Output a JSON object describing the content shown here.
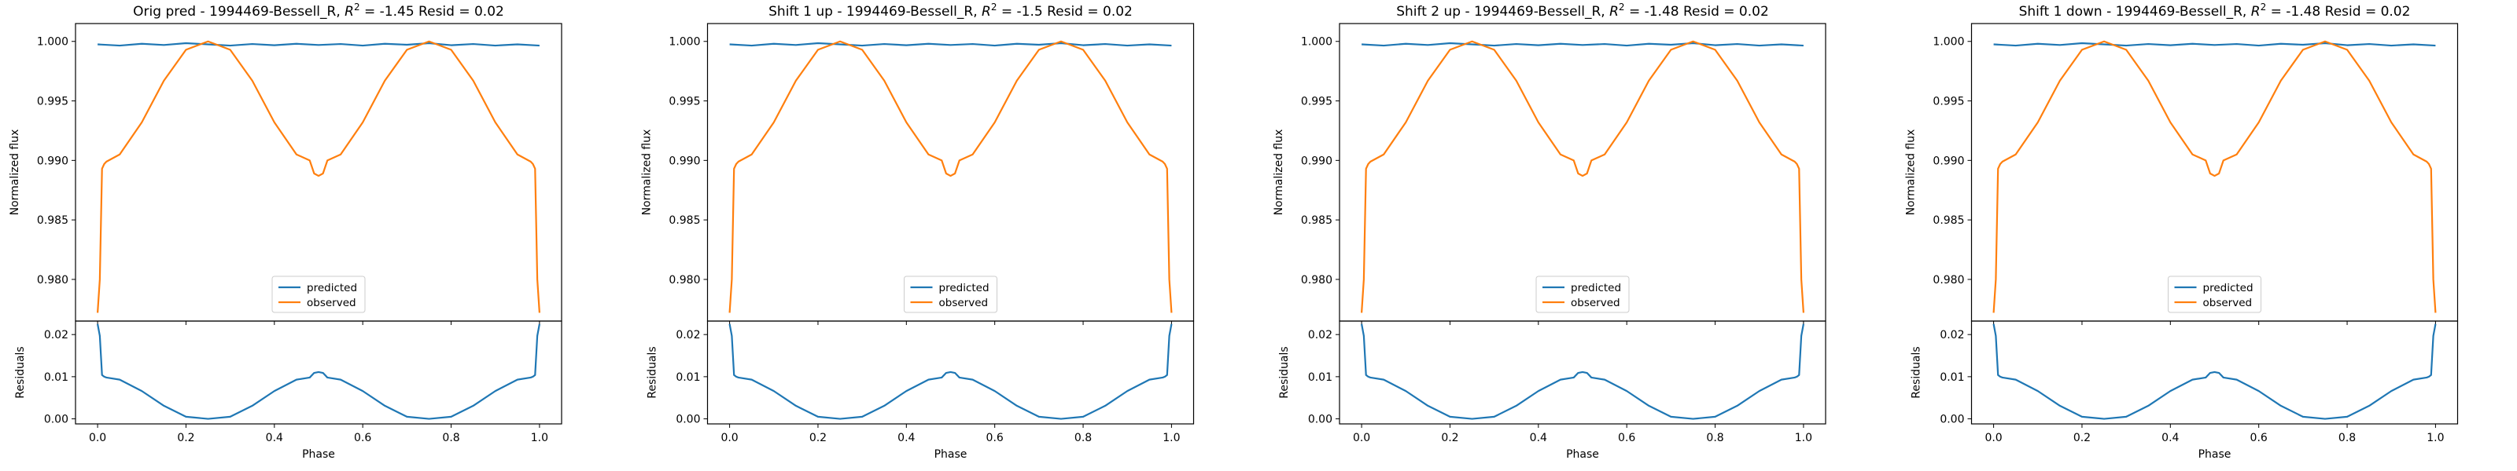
{
  "figure": {
    "panels": [
      {
        "title": "Orig pred - 1994469-Bessell_R, $R^2 = $-1.45 Resid = 0.02"
      },
      {
        "title": "Shift 1 up - 1994469-Bessell_R, $R^2 = $-1.5 Resid = 0.02"
      },
      {
        "title": "Shift 2 up - 1994469-Bessell_R, $R^2 = $-1.48 Resid = 0.02"
      },
      {
        "title": "Shift 1 down - 1994469-Bessell_R, $R^2 = $-1.48 Resid = 0.02"
      }
    ]
  },
  "colors": {
    "predicted": "#1f77b4",
    "observed": "#ff7f0e"
  },
  "chart_data": {
    "type": "line",
    "layout": "4 panels, each with a flux subplot above a residuals subplot",
    "main": {
      "ylabel": "Normalized flux",
      "ylim": [
        0.9765,
        1.0015
      ],
      "yticks": [
        0.98,
        0.985,
        0.99,
        0.995,
        1.0
      ],
      "ytick_labels": [
        "0.980",
        "0.985",
        "0.990",
        "0.995",
        "1.000"
      ],
      "legend": [
        "predicted",
        "observed"
      ],
      "legend_loc": "lower center",
      "series": [
        {
          "name": "predicted",
          "x": [
            0.0,
            0.05,
            0.1,
            0.15,
            0.2,
            0.25,
            0.3,
            0.35,
            0.4,
            0.45,
            0.5,
            0.55,
            0.6,
            0.65,
            0.7,
            0.75,
            0.8,
            0.85,
            0.9,
            0.95,
            1.0
          ],
          "y": [
            0.99975,
            0.99965,
            0.9998,
            0.9997,
            0.99985,
            0.99975,
            0.99965,
            0.99978,
            0.99968,
            0.9998,
            0.9997,
            0.99978,
            0.99965,
            0.9998,
            0.99972,
            0.99985,
            0.99968,
            0.99978,
            0.99965,
            0.99975,
            0.99965
          ]
        },
        {
          "name": "observed",
          "x": [
            0.0,
            0.005,
            0.01,
            0.015,
            0.02,
            0.05,
            0.1,
            0.15,
            0.2,
            0.25,
            0.3,
            0.35,
            0.4,
            0.45,
            0.48,
            0.49,
            0.5,
            0.51,
            0.52,
            0.55,
            0.6,
            0.65,
            0.7,
            0.75,
            0.8,
            0.85,
            0.9,
            0.95,
            0.98,
            0.985,
            0.99,
            0.995,
            1.0
          ],
          "y": [
            0.9772,
            0.98,
            0.9893,
            0.9897,
            0.9899,
            0.9905,
            0.9932,
            0.9967,
            0.9993,
            1.0,
            0.9993,
            0.9967,
            0.9932,
            0.9905,
            0.99,
            0.9889,
            0.9887,
            0.9889,
            0.99,
            0.9905,
            0.9932,
            0.9967,
            0.9993,
            1.0,
            0.9993,
            0.9967,
            0.9932,
            0.9905,
            0.9899,
            0.9897,
            0.9893,
            0.98,
            0.9772
          ]
        }
      ]
    },
    "residuals": {
      "xlabel": "Phase",
      "ylabel": "Residuals",
      "xlim": [
        -0.05,
        1.05
      ],
      "ylim": [
        -0.0012,
        0.0232
      ],
      "xticks": [
        0.0,
        0.2,
        0.4,
        0.6,
        0.8,
        1.0
      ],
      "xtick_labels": [
        "0.0",
        "0.2",
        "0.4",
        "0.6",
        "0.8",
        "1.0"
      ],
      "yticks": [
        0.0,
        0.01,
        0.02
      ],
      "ytick_labels": [
        "0.00",
        "0.01",
        "0.02"
      ],
      "series": [
        {
          "name": "residuals",
          "x": [
            0.0,
            0.005,
            0.01,
            0.015,
            0.02,
            0.05,
            0.1,
            0.15,
            0.2,
            0.25,
            0.3,
            0.35,
            0.4,
            0.45,
            0.48,
            0.49,
            0.5,
            0.51,
            0.52,
            0.55,
            0.6,
            0.65,
            0.7,
            0.75,
            0.8,
            0.85,
            0.9,
            0.95,
            0.98,
            0.985,
            0.99,
            0.995,
            1.0
          ],
          "y": [
            0.0225,
            0.0197,
            0.0104,
            0.01,
            0.0098,
            0.0093,
            0.0066,
            0.0031,
            0.0005,
            0.0,
            0.0005,
            0.0031,
            0.0066,
            0.0093,
            0.0098,
            0.0109,
            0.0111,
            0.0109,
            0.0098,
            0.0093,
            0.0066,
            0.0031,
            0.0005,
            0.0,
            0.0005,
            0.0031,
            0.0066,
            0.0093,
            0.0098,
            0.01,
            0.0104,
            0.0197,
            0.0225
          ]
        }
      ]
    }
  }
}
